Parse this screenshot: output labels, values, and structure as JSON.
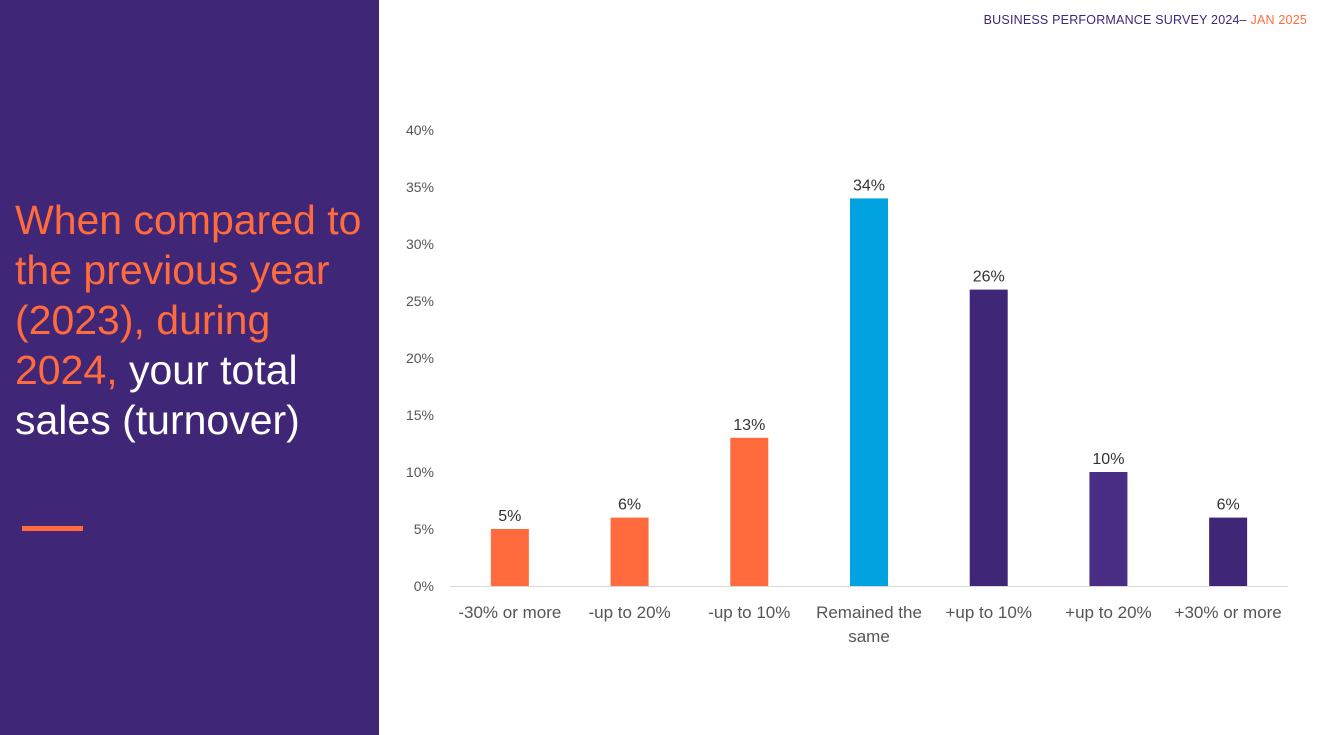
{
  "header": {
    "survey": "BUSINESS PERFORMANCE SURVEY 2024–",
    "date": " JAN 2025"
  },
  "headline": {
    "highlight": "When compared to the previous year (2023), during 2024,",
    "rest": " your total sales (turnover)"
  },
  "colors": {
    "panel": "#3f2677",
    "accent": "#ff6b3d",
    "decrease": "#ff6b3d",
    "same": "#00a3e0",
    "increase": "#3f2677"
  },
  "chart_data": {
    "type": "bar",
    "categories": [
      "-30% or more",
      "-up to 20%",
      "-up to 10%",
      "Remained the same",
      "+up to 10%",
      "+up to 20%",
      "+30% or more"
    ],
    "category_lines": [
      [
        "-30% or more"
      ],
      [
        "-up to 20%"
      ],
      [
        "-up to 10%"
      ],
      [
        "Remained the",
        "same"
      ],
      [
        "+up to 10%"
      ],
      [
        "+up to 20%"
      ],
      [
        "+30% or more"
      ]
    ],
    "values": [
      5,
      6,
      13,
      34,
      26,
      10,
      6
    ],
    "data_labels": [
      "5%",
      "6%",
      "13%",
      "34%",
      "26%",
      "10%",
      "6%"
    ],
    "bar_colors": [
      "#ff6b3d",
      "#ff6b3d",
      "#ff6b3d",
      "#00a3e0",
      "#3f2677",
      "#4a2d85",
      "#3f2677"
    ],
    "yticks": [
      0,
      5,
      10,
      15,
      20,
      25,
      30,
      35,
      40
    ],
    "ytick_labels": [
      "0%",
      "5%",
      "10%",
      "15%",
      "20%",
      "25%",
      "30%",
      "35%",
      "40%"
    ],
    "ylim": [
      0,
      40
    ],
    "grid": false,
    "legend": "none"
  }
}
